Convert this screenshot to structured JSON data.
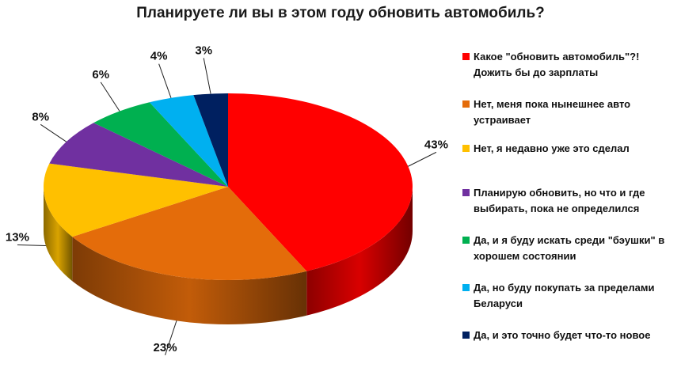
{
  "chart_data": {
    "type": "pie",
    "title": "Планируете ли вы в этом году обновить автомобиль?",
    "slices": [
      {
        "label": "Какое \"обновить автомобиль\"?! Дожить бы до зарплаты",
        "value": 43,
        "value_label": "43%",
        "color": "#ff0000"
      },
      {
        "label": "Нет, меня пока нынешнее авто устраивает",
        "value": 23,
        "value_label": "23%",
        "color": "#e46c0a"
      },
      {
        "label": "Нет, я недавно уже это сделал",
        "value": 13,
        "value_label": "13%",
        "color": "#ffc000"
      },
      {
        "label": "Планирую обновить, но что и где выбирать, пока не определился",
        "value": 8,
        "value_label": "8%",
        "color": "#7030a0"
      },
      {
        "label": "Да, и я буду искать среди \"бэушки\" в хорошем состоянии",
        "value": 6,
        "value_label": "6%",
        "color": "#00b050"
      },
      {
        "label": "Да, но буду покупать за пределами Беларуси",
        "value": 4,
        "value_label": "4%",
        "color": "#00b0f0"
      },
      {
        "label": "Да, и это точно будет что-то новое",
        "value": 3,
        "value_label": "3%",
        "color": "#002060"
      }
    ],
    "legend_position": "right"
  }
}
